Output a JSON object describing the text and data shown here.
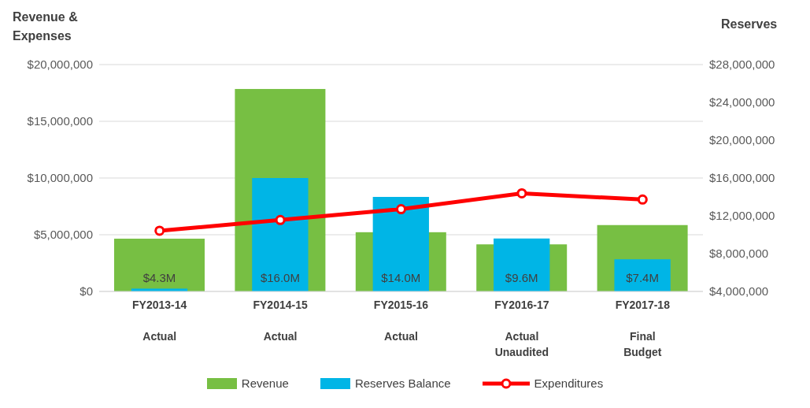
{
  "chart_data": {
    "type": "bar",
    "ylabel": "Revenue & Expenses",
    "y2label": "Reserves",
    "categories": [
      "FY2013-14\nActual",
      "FY2014-15\nActual",
      "FY2015-16\nActual",
      "FY2016-17\nActual\nUnaudited",
      "FY2017-18\nFinal\nBudget"
    ],
    "series": [
      {
        "name": "Revenue",
        "color": "#77bf43",
        "values": [
          4650000,
          17850000,
          5220000,
          4150000,
          5850000
        ]
      },
      {
        "name": "Reserves Balance",
        "axis": "y2",
        "color": "#00b5e6",
        "values": [
          4300000,
          16000000,
          14000000,
          9600000,
          7400000
        ],
        "value_labels": [
          "$4.3M",
          "$16.0M",
          "$14.0M",
          "$9.6M",
          "$7.4M"
        ]
      },
      {
        "name": "Expenditures",
        "type": "line",
        "color": "#ff0000",
        "marker": "circle",
        "line_style": "solid",
        "values": [
          5350000,
          6300000,
          7250000,
          8650000,
          8100000
        ]
      }
    ],
    "ylim": [
      0,
      20000000
    ],
    "yticks": [
      {
        "value": 0,
        "label": "$0"
      },
      {
        "value": 5000000,
        "label": "$5,000,000"
      },
      {
        "value": 10000000,
        "label": "$10,000,000"
      },
      {
        "value": 15000000,
        "label": "$15,000,000"
      },
      {
        "value": 20000000,
        "label": "$20,000,000"
      }
    ],
    "y2lim": [
      4000000,
      28000000
    ],
    "y2ticks": [
      {
        "value": 4000000,
        "label": "$4,000,000"
      },
      {
        "value": 8000000,
        "label": "$8,000,000"
      },
      {
        "value": 12000000,
        "label": "$12,000,000"
      },
      {
        "value": 16000000,
        "label": "$16,000,000"
      },
      {
        "value": 20000000,
        "label": "$20,000,000"
      },
      {
        "value": 24000000,
        "label": "$24,000,000"
      },
      {
        "value": 28000000,
        "label": "$28,000,000"
      }
    ],
    "grid": "y",
    "legend": "bottom"
  }
}
